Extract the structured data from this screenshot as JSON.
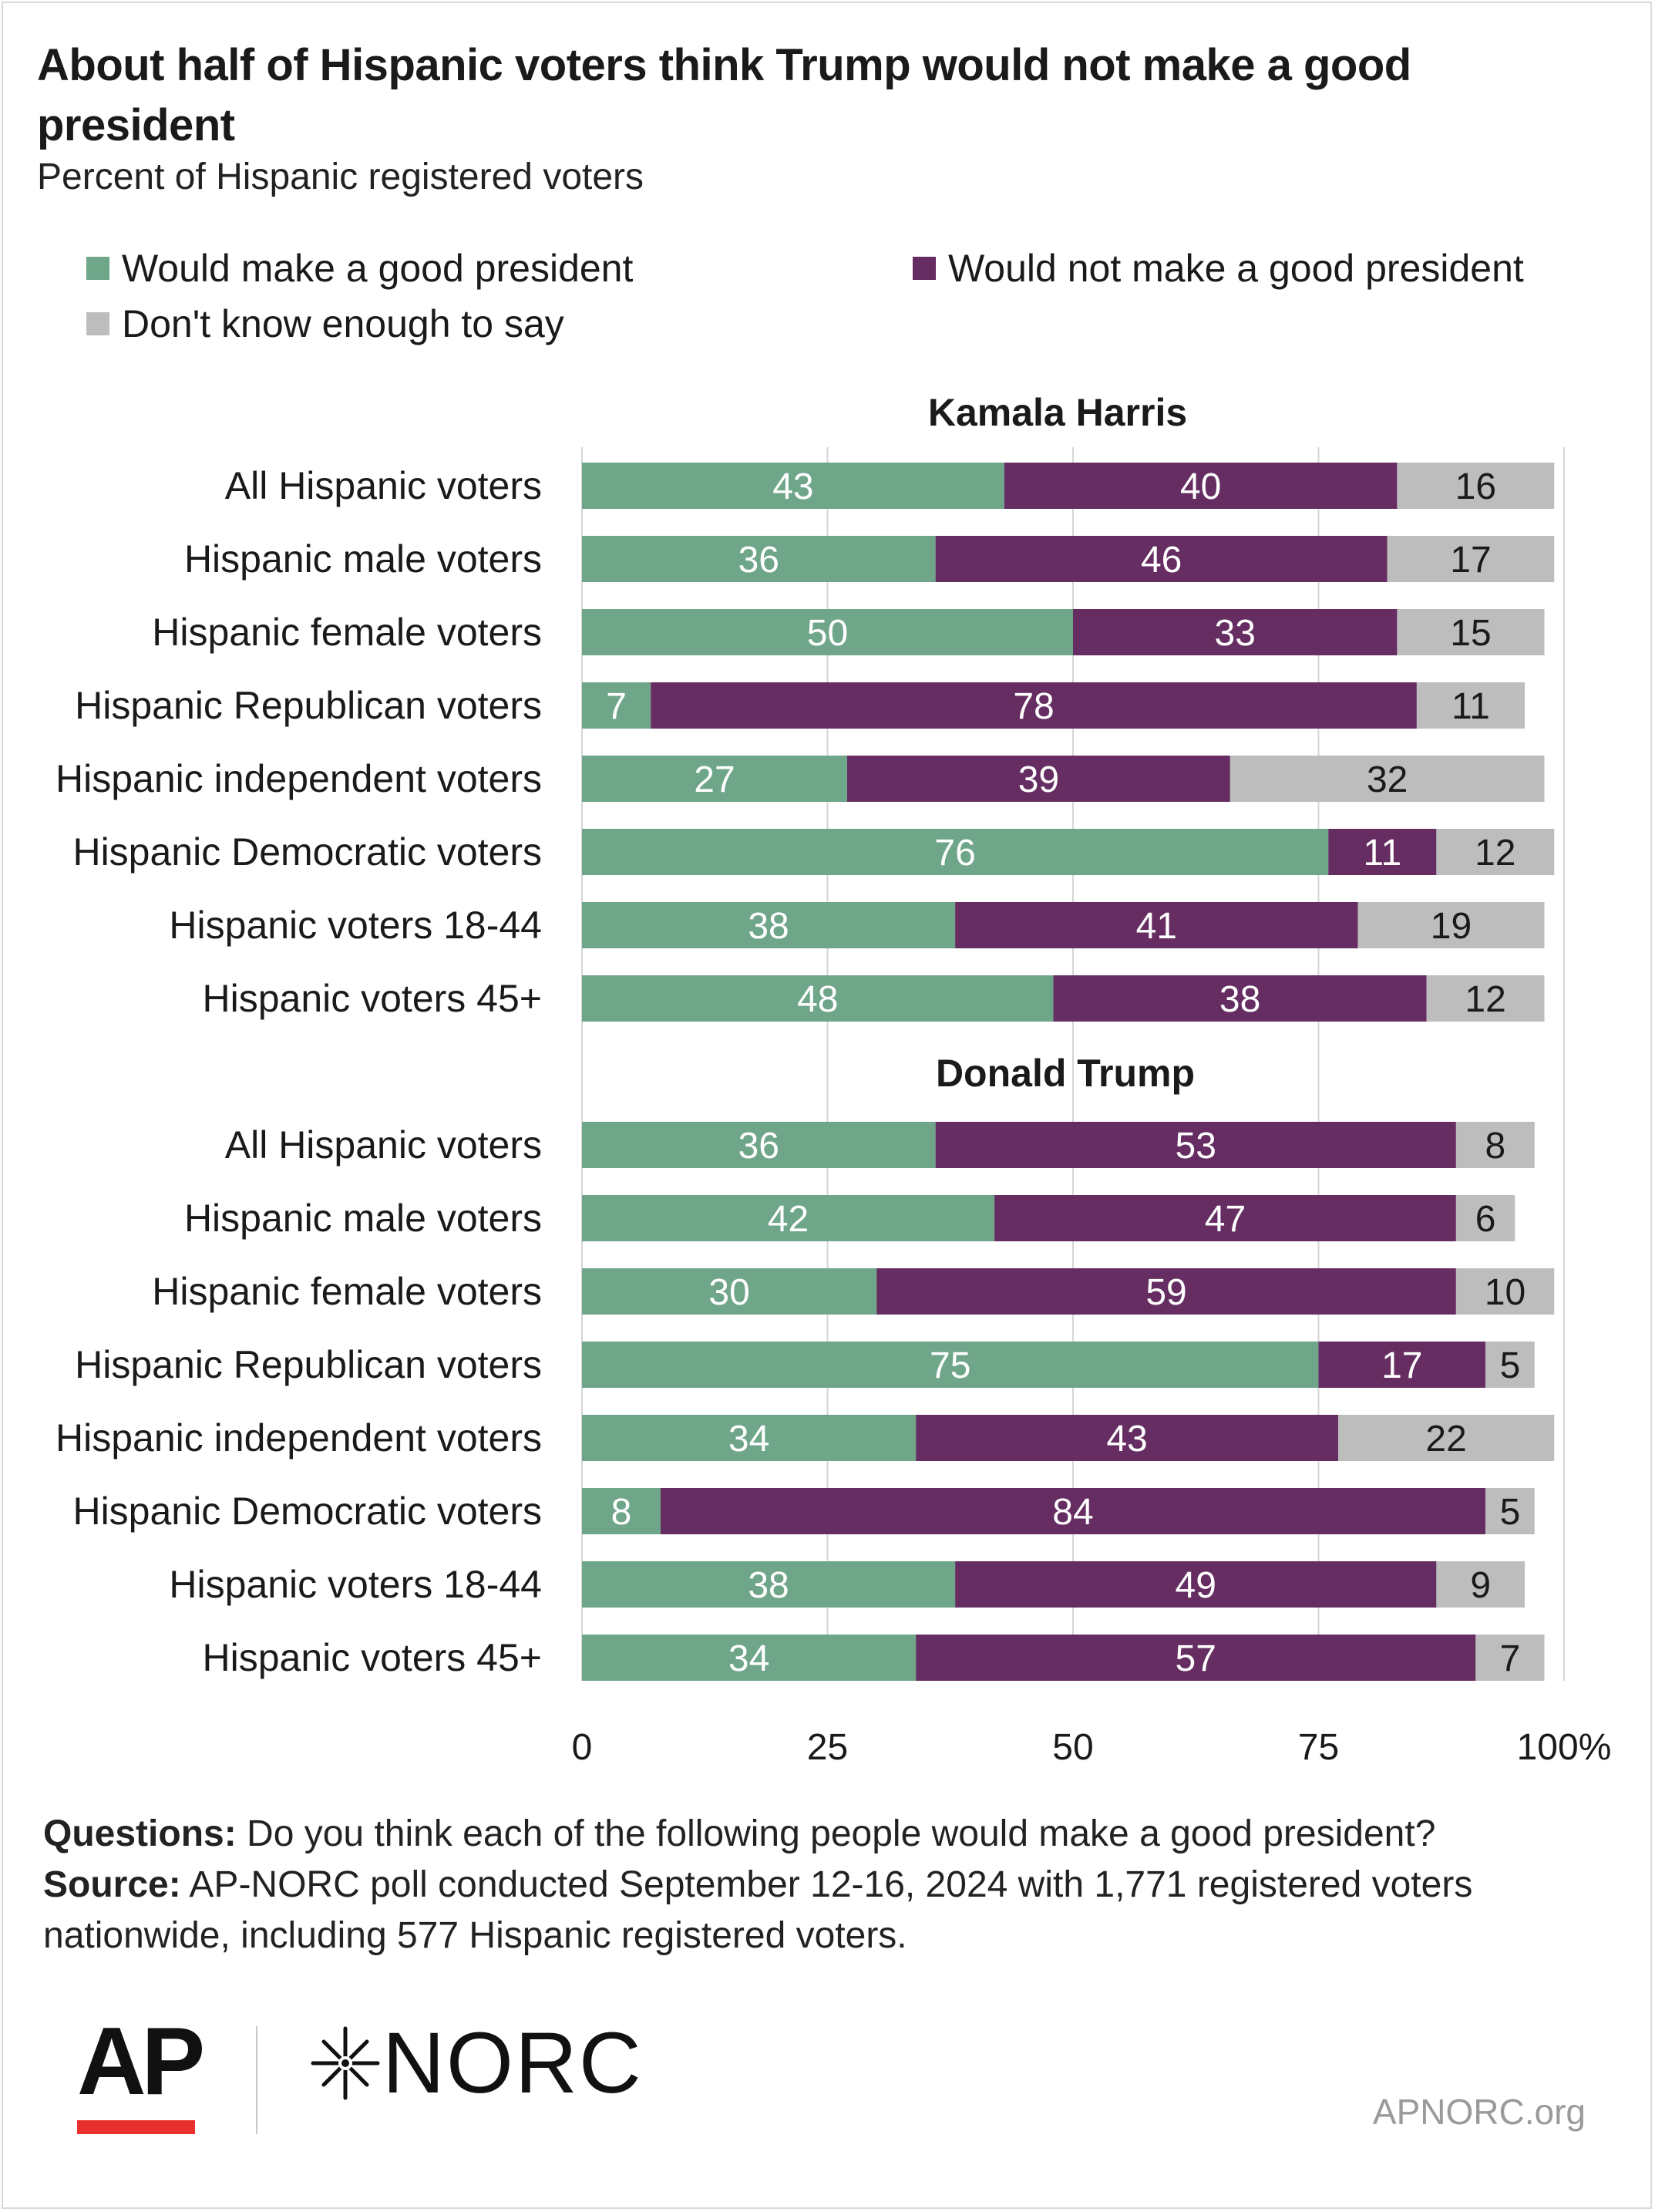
{
  "title": "About half of Hispanic voters think Trump would not make a good president",
  "subtitle": "Percent of Hispanic registered voters",
  "colors": {
    "good": "#6fa68a",
    "not_good": "#652d62",
    "dont_know": "#bdbdbd",
    "grid": "#d6d6d6",
    "text": "#1a1a1a",
    "ap_red": "#e8312f",
    "site": "#9a9a9a"
  },
  "legend": [
    {
      "label": "Would make a good president",
      "color": "#6fa68a"
    },
    {
      "label": "Would not make a good president",
      "color": "#652d62"
    },
    {
      "label": "Don't know enough to say",
      "color": "#bdbdbd"
    }
  ],
  "chart_data": {
    "type": "bar",
    "orientation": "horizontal",
    "stacked": true,
    "xlim": [
      0,
      100
    ],
    "x_ticks": [
      "0",
      "25",
      "50",
      "75",
      "100%"
    ],
    "grid": true,
    "legend_position": "top",
    "series_names": [
      "Would make a good president",
      "Would not make a good president",
      "Don't know enough to say"
    ],
    "panels": [
      {
        "name": "Kamala Harris",
        "categories": [
          "All Hispanic voters",
          "Hispanic male voters",
          "Hispanic female voters",
          "Hispanic Republican voters",
          "Hispanic independent voters",
          "Hispanic Democratic voters",
          "Hispanic voters 18-44",
          "Hispanic voters 45+"
        ],
        "series": [
          {
            "name": "Would make a good president",
            "values": [
              43,
              36,
              50,
              7,
              27,
              76,
              38,
              48
            ]
          },
          {
            "name": "Would not make a good president",
            "values": [
              40,
              46,
              33,
              78,
              39,
              11,
              41,
              38
            ]
          },
          {
            "name": "Don't know enough to say",
            "values": [
              16,
              17,
              15,
              11,
              32,
              12,
              19,
              12
            ]
          }
        ]
      },
      {
        "name": "Donald Trump",
        "categories": [
          "All Hispanic voters",
          "Hispanic male voters",
          "Hispanic female voters",
          "Hispanic Republican voters",
          "Hispanic independent voters",
          "Hispanic Democratic voters",
          "Hispanic voters 18-44",
          "Hispanic voters 45+"
        ],
        "series": [
          {
            "name": "Would make a good president",
            "values": [
              36,
              42,
              30,
              75,
              34,
              8,
              38,
              34
            ]
          },
          {
            "name": "Would not make a good president",
            "values": [
              53,
              47,
              59,
              17,
              43,
              84,
              49,
              57
            ]
          },
          {
            "name": "Don't know enough to say",
            "values": [
              8,
              6,
              10,
              5,
              22,
              5,
              9,
              7
            ]
          }
        ]
      }
    ]
  },
  "footer": {
    "questions_label": "Questions:",
    "questions_text": "Do you think each of the following people would make a good president?",
    "source_label": "Source:",
    "source_text": "AP-NORC poll conducted September 12-16, 2024 with 1,771 registered voters nationwide, including 577 Hispanic registered voters."
  },
  "logos": {
    "ap": "AP",
    "norc": "NORC",
    "norc_mark": "✶",
    "site": "APNORC.org"
  }
}
